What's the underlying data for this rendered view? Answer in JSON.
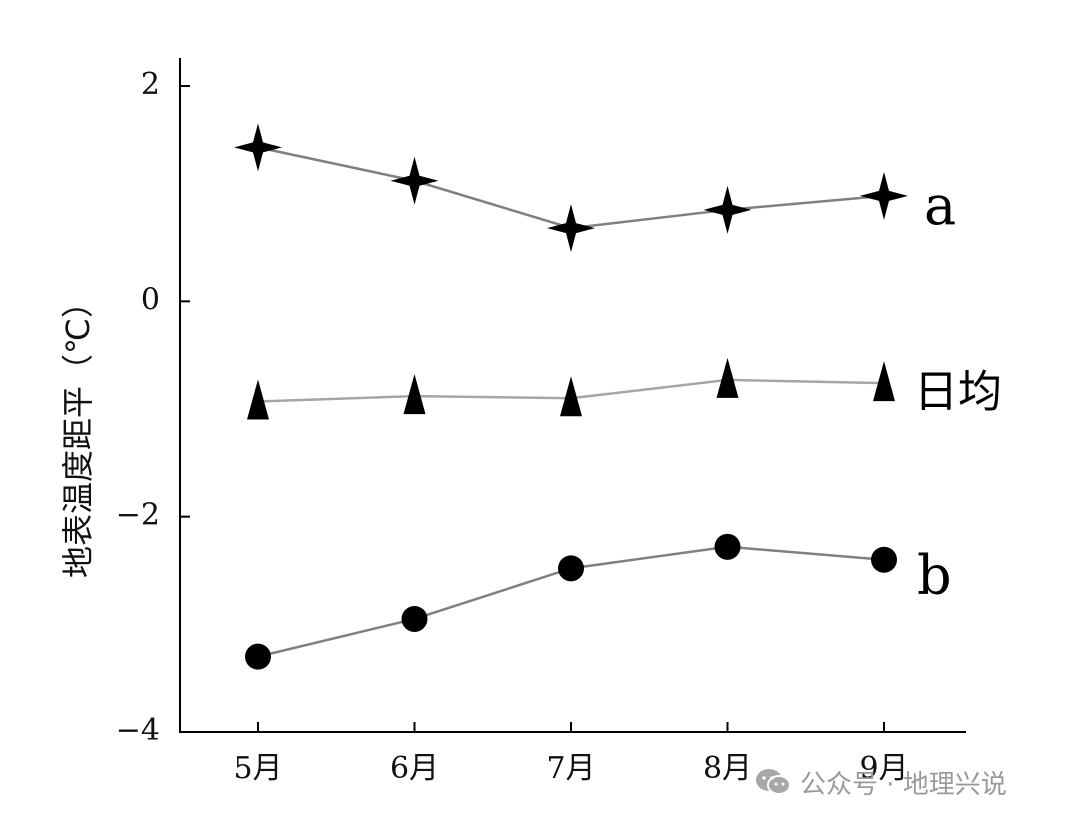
{
  "chart_data": {
    "type": "line",
    "ylabel": "地表温度距平（℃）",
    "categories": [
      "5月",
      "6月",
      "7月",
      "8月",
      "9月"
    ],
    "ylim": [
      -4,
      2
    ],
    "yticks": [
      2,
      0,
      -2,
      -4
    ],
    "ytick_labels": [
      "2",
      "0",
      "−2",
      "−4"
    ],
    "grid": false,
    "series": [
      {
        "name": "a",
        "marker": "star4",
        "color": "#808080",
        "values": [
          1.43,
          1.12,
          0.68,
          0.85,
          0.98
        ]
      },
      {
        "name": "日均",
        "marker": "triangle",
        "color": "#a6a6a6",
        "values": [
          -0.93,
          -0.88,
          -0.9,
          -0.73,
          -0.76
        ]
      },
      {
        "name": "b",
        "marker": "circle",
        "color": "#808080",
        "values": [
          -3.3,
          -2.95,
          -2.48,
          -2.28,
          -2.4
        ]
      }
    ]
  },
  "watermark": {
    "text": "公众号 · 地理兴说",
    "icon": "wechat-icon"
  }
}
